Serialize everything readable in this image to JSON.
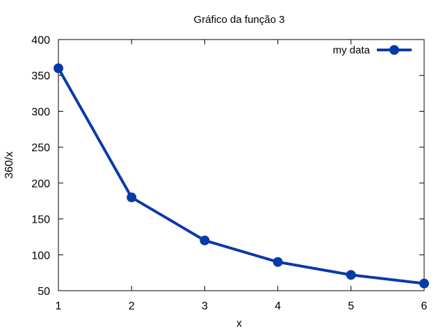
{
  "chart_data": {
    "type": "line",
    "title": "Gráfico da função 3",
    "xlabel": "x",
    "ylabel": "360/x",
    "xlim": [
      1,
      6
    ],
    "ylim": [
      50,
      400
    ],
    "x_ticks": [
      1,
      2,
      3,
      4,
      5,
      6
    ],
    "y_ticks": [
      50,
      100,
      150,
      200,
      250,
      300,
      350,
      400
    ],
    "grid": false,
    "legend_position": "top-right",
    "series": [
      {
        "name": "my data",
        "color": "#0a3aa8",
        "x": [
          1,
          2,
          3,
          4,
          5,
          6
        ],
        "y": [
          360,
          180,
          120,
          90,
          72,
          60
        ]
      }
    ]
  }
}
